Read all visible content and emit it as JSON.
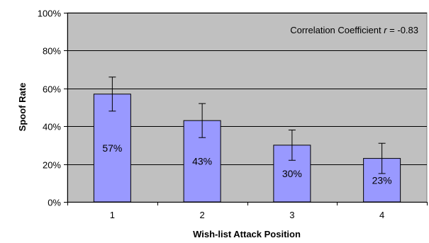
{
  "chart_data": {
    "type": "bar",
    "title": "",
    "xlabel": "Wish-list Attack Position",
    "ylabel": "Spoof Rate",
    "categories": [
      "1",
      "2",
      "3",
      "4"
    ],
    "values": [
      57,
      43,
      30,
      23
    ],
    "error_low": [
      48,
      34,
      22,
      15
    ],
    "error_high": [
      66,
      52,
      38,
      31
    ],
    "data_labels": [
      "57%",
      "43%",
      "30%",
      "23%"
    ],
    "ylim": [
      0,
      100
    ],
    "yticks": [
      0,
      20,
      40,
      60,
      80,
      100
    ],
    "ytick_labels": [
      "0%",
      "20%",
      "40%",
      "60%",
      "80%",
      "100%"
    ],
    "grid": true,
    "annotation": {
      "prefix": "Correlation Coefficient ",
      "variable": "r",
      "suffix": " = -0.83"
    },
    "colors": {
      "plot_background": "#c0c0c0",
      "bar_fill": "#9999ff",
      "bar_stroke": "#000000",
      "grid": "#000000",
      "error_bar": "#000000"
    }
  }
}
